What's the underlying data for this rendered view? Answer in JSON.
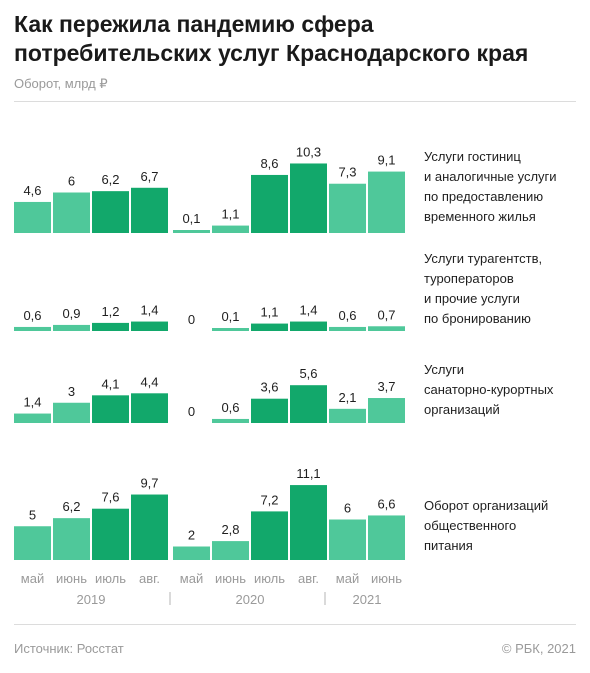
{
  "title": "Как пережила пандемию сфера потребительских услуг Краснодарского края",
  "subtitle": "Оборот, млрд ₽",
  "source": "Источник: Росстат",
  "copyright": "© РБК, 2021",
  "colors": {
    "light": "#4fc89a",
    "dark": "#12a86b",
    "text": "#1f1f1f",
    "axis_text": "#9a9a9a"
  },
  "chart_data": {
    "type": "bar",
    "categories": [
      "май",
      "июнь",
      "июль",
      "авг.",
      "май",
      "июнь",
      "июль",
      "авг.",
      "май",
      "июнь"
    ],
    "years": [
      {
        "label": "2019",
        "from": 0,
        "to": 3
      },
      {
        "label": "2020",
        "from": 4,
        "to": 7
      },
      {
        "label": "2021",
        "from": 8,
        "to": 9
      }
    ],
    "series": [
      {
        "name": "Услуги гостиниц и аналогичные услуги по предоставлению временного жилья",
        "lines": [
          "Услуги гостиниц",
          "и аналогичные услуги",
          "по предоставлению",
          "временного жилья"
        ],
        "values": [
          4.6,
          6,
          6.2,
          6.7,
          0.1,
          1.1,
          8.6,
          10.3,
          7.3,
          9.1
        ],
        "labels": [
          "4,6",
          "6",
          "6,2",
          "6,7",
          "0,1",
          "1,1",
          "8,6",
          "10,3",
          "7,3",
          "9,1"
        ]
      },
      {
        "name": "Услуги турагентств, туроператоров и прочие услуги по бронированию",
        "lines": [
          "Услуги турагентств,",
          "туроператоров",
          "и прочие услуги",
          "по бронированию"
        ],
        "values": [
          0.6,
          0.9,
          1.2,
          1.4,
          0,
          0.1,
          1.1,
          1.4,
          0.6,
          0.7
        ],
        "labels": [
          "0,6",
          "0,9",
          "1,2",
          "1,4",
          "0",
          "0,1",
          "1,1",
          "1,4",
          "0,6",
          "0,7"
        ]
      },
      {
        "name": "Услуги санаторно-курортных организаций",
        "lines": [
          "Услуги",
          "санаторно-курортных",
          "организаций"
        ],
        "values": [
          1.4,
          3,
          4.1,
          4.4,
          0,
          0.6,
          3.6,
          5.6,
          2.1,
          3.7
        ],
        "labels": [
          "1,4",
          "3",
          "4,1",
          "4,4",
          "0",
          "0,6",
          "3,6",
          "5,6",
          "2,1",
          "3,7"
        ]
      },
      {
        "name": "Оборот организаций общественного питания",
        "lines": [
          "Оборот организаций",
          "общественного",
          "питания"
        ],
        "values": [
          5,
          6.2,
          7.6,
          9.7,
          2,
          2.8,
          7.2,
          11.1,
          6,
          6.6
        ],
        "labels": [
          "5",
          "6,2",
          "7,6",
          "9,7",
          "2",
          "2,8",
          "7,2",
          "11,1",
          "6",
          "6,6"
        ]
      }
    ]
  }
}
